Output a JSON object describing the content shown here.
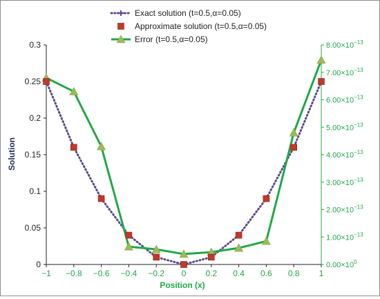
{
  "chart_data": {
    "type": "line",
    "xlabel": "Position (x)",
    "ylabel": "Solution",
    "x": [
      -1,
      -0.8,
      -0.6,
      -0.4,
      -0.2,
      0,
      0.2,
      0.4,
      0.6,
      0.8,
      1
    ],
    "x_tick_labels": [
      "−1",
      "−0.8",
      "−0.6",
      "−0.4",
      "−0.2",
      "0",
      "0.2",
      "0.4",
      "0.6",
      "0.8",
      "1"
    ],
    "y_left": {
      "range": [
        0,
        0.3
      ],
      "ticks": [
        0,
        0.05,
        0.1,
        0.15,
        0.2,
        0.25,
        0.3
      ],
      "tick_labels": [
        "0",
        "0.05",
        "0.1",
        "0.15",
        "0.2",
        "0.25",
        "0.3"
      ]
    },
    "y_right": {
      "range": [
        0,
        8e-13
      ],
      "ticks": [
        0,
        1e-13,
        2e-13,
        3e-13,
        4e-13,
        5e-13,
        6e-13,
        7e-13,
        8e-13
      ],
      "tick_labels": [
        {
          "m": "0.00×10",
          "e": "0"
        },
        {
          "m": "1.00×10",
          "e": "−13"
        },
        {
          "m": "2.00×10",
          "e": "−13"
        },
        {
          "m": "3.00×10",
          "e": "−13"
        },
        {
          "m": "4.00×10",
          "e": "−13"
        },
        {
          "m": "5.00×10",
          "e": "−13"
        },
        {
          "m": "6.00×10",
          "e": "−13"
        },
        {
          "m": "7.00×10",
          "e": "−13"
        },
        {
          "m": "8.00×10",
          "e": "−13"
        }
      ]
    },
    "grid": false,
    "legend_position": "top-center",
    "series": [
      {
        "name": "Exact solution (t=0.5,α=0.05)",
        "axis": "left",
        "style": "dotted-line",
        "color": "#5b4a8b",
        "values": [
          0.25,
          0.16,
          0.09,
          0.04,
          0.01,
          0,
          0.01,
          0.04,
          0.09,
          0.16,
          0.25
        ]
      },
      {
        "name": "Approximate solution (t=0.5,α=0.05)",
        "axis": "left",
        "style": "square-markers",
        "color": "#c0392b",
        "values": [
          0.25,
          0.16,
          0.09,
          0.04,
          0.01,
          0,
          0.01,
          0.04,
          0.09,
          0.16,
          0.25
        ]
      },
      {
        "name": "Error (t=0.5,α=0.05)",
        "axis": "right",
        "style": "line-triangle-markers",
        "color": "#1fa846",
        "marker_color": "#9bbb59",
        "values": [
          6.8e-13,
          6.3e-13,
          4.3e-13,
          6.5e-14,
          5.5e-14,
          3.8e-14,
          4.5e-14,
          6e-14,
          8.5e-14,
          4.8e-13,
          7.45e-13
        ]
      }
    ]
  }
}
